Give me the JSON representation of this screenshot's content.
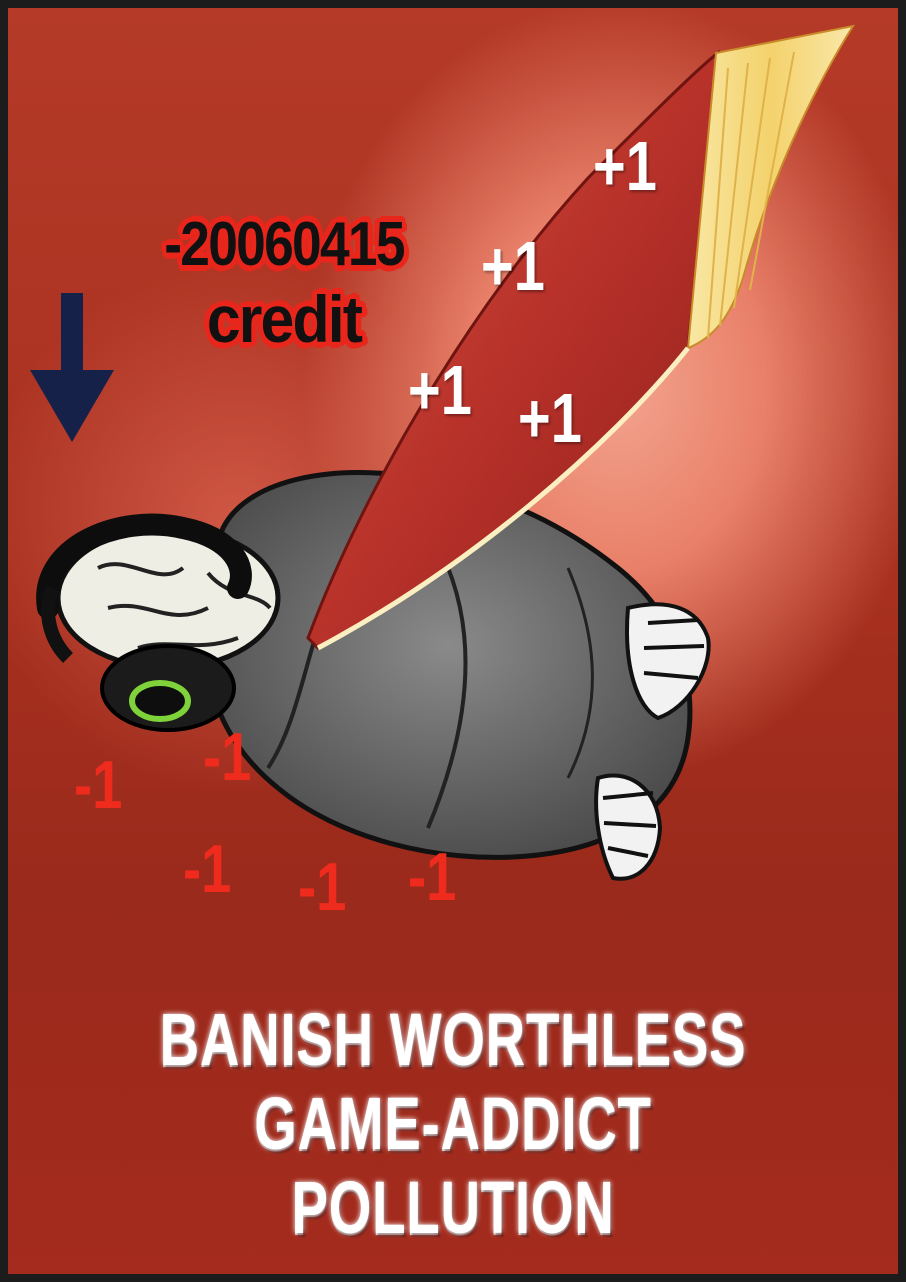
{
  "poster": {
    "credit_value": "-20060415",
    "credit_label": "credit",
    "plus_marks": [
      "+1",
      "+1",
      "+1",
      "+1"
    ],
    "minus_marks": [
      "-1",
      "-1",
      "-1",
      "-1",
      "-1"
    ],
    "slogan_line1": "BANISH WORTHLESS",
    "slogan_line2": "GAME-ADDICT POLLUTION"
  },
  "colors": {
    "background": "#a8301f",
    "credit_outline": "#e8261c",
    "minus": "#ef2b1d",
    "arrow": "#16214a",
    "book_cover": "#c73a2c",
    "book_pages": "#f4d77e",
    "headset_ring": "#7fd23a"
  },
  "icons": [
    "down-arrow-icon",
    "book-icon",
    "headset-icon"
  ]
}
